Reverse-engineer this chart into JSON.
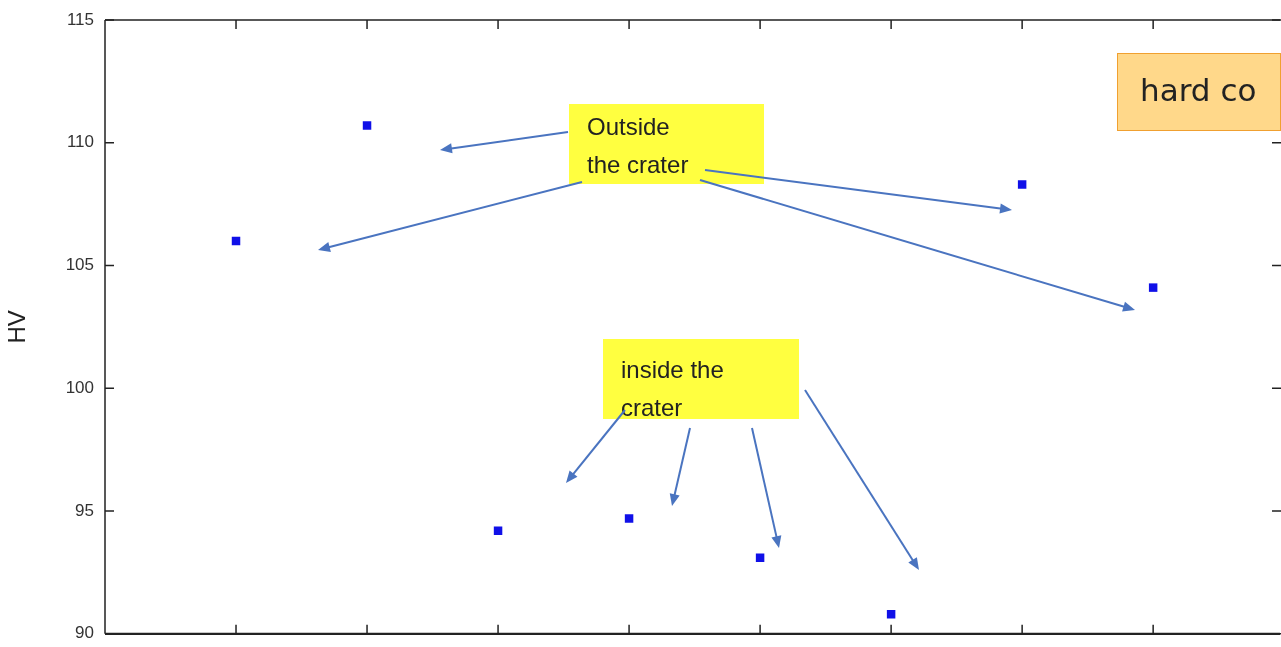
{
  "chart_data": {
    "type": "scatter",
    "ylabel": "HV",
    "categories": [
      null,
      null,
      null,
      null,
      null,
      null,
      null,
      null
    ],
    "series": [
      {
        "color": "#1010e8",
        "values": [
          106.0,
          110.7,
          94.2,
          94.7,
          93.1,
          90.8,
          108.3,
          104.1
        ]
      }
    ],
    "ylim": [
      90,
      115
    ],
    "yticks": [
      90,
      95,
      100,
      105,
      110,
      115
    ],
    "marker": "square",
    "grid": false,
    "legend": false,
    "tick_labels": "y",
    "annotations": [
      "Outside the crater",
      "inside the crater",
      "hard co"
    ]
  }
}
